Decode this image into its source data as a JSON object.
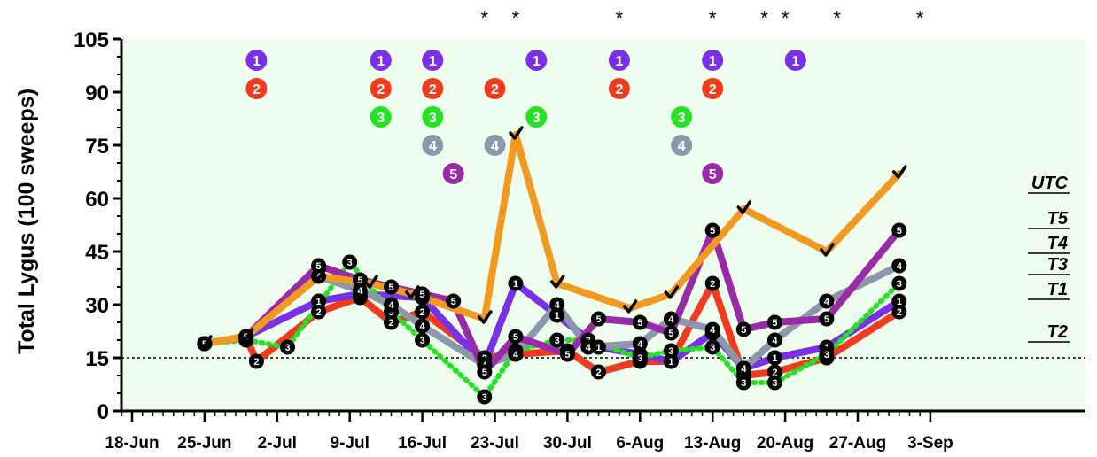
{
  "chart_data": {
    "type": "line",
    "ylabel": "Total Lygus (100 sweeps)",
    "ylim": [
      0,
      105
    ],
    "yticks": [
      0,
      15,
      30,
      45,
      60,
      75,
      90,
      105
    ],
    "xlim_day": [
      -4,
      76
    ],
    "xticks": [
      {
        "day": 0,
        "label": "18-Jun"
      },
      {
        "day": 7,
        "label": "25-Jun"
      },
      {
        "day": 14,
        "label": "2-Jul"
      },
      {
        "day": 21,
        "label": "9-Jul"
      },
      {
        "day": 28,
        "label": "16-Jul"
      },
      {
        "day": 35,
        "label": "23-Jul"
      },
      {
        "day": 42,
        "label": "30-Jul"
      },
      {
        "day": 49,
        "label": "6-Aug"
      },
      {
        "day": 56,
        "label": "13-Aug"
      },
      {
        "day": 63,
        "label": "20-Aug"
      },
      {
        "day": 70,
        "label": "27-Aug"
      },
      {
        "day": 77,
        "label": "3-Sep"
      }
    ],
    "threshold": 15,
    "series": [
      {
        "name": "UTC",
        "color": "#f29a1f",
        "marker": "check",
        "x": [
          7,
          11,
          18,
          23,
          27,
          34,
          37,
          41,
          48,
          52,
          59,
          67,
          74
        ],
        "y": [
          19,
          21,
          38,
          36,
          33,
          26,
          78,
          36,
          29,
          33,
          57,
          45,
          67
        ]
      },
      {
        "name": "T5",
        "color": "#9b2aa8",
        "marker": "5",
        "x": [
          7,
          11,
          18,
          22,
          25,
          28,
          31,
          34,
          37,
          42,
          45,
          49,
          52,
          56,
          59,
          62,
          67,
          74
        ],
        "y": [
          19,
          21,
          41,
          37,
          35,
          33,
          31,
          11,
          21,
          16,
          26,
          25,
          22,
          51,
          23,
          25,
          26,
          51
        ]
      },
      {
        "name": "T4",
        "color": "#8d97ab",
        "marker": "4",
        "x": [
          7,
          11,
          18,
          22,
          25,
          28,
          34,
          37,
          41,
          44,
          49,
          52,
          56,
          59,
          62,
          67,
          74
        ],
        "y": [
          19,
          21,
          38,
          34,
          30,
          24,
          13,
          16,
          30,
          18,
          19,
          26,
          23,
          12,
          20,
          31,
          41
        ]
      },
      {
        "name": "T3",
        "color": "#25e225",
        "marker": "3",
        "x": [
          7,
          11,
          15,
          21,
          25,
          28,
          34,
          37,
          41,
          44,
          49,
          52,
          56,
          59,
          62,
          67,
          74
        ],
        "y": [
          19,
          20,
          18,
          42,
          28,
          20,
          4,
          17,
          20,
          20,
          15,
          17,
          18,
          8,
          8,
          16,
          36
        ]
      },
      {
        "name": "T1",
        "color": "#7a30e8",
        "marker": "1",
        "x": [
          7,
          11,
          18,
          22,
          28,
          34,
          37,
          41,
          45,
          49,
          52,
          56,
          59,
          62,
          67,
          74
        ],
        "y": [
          19,
          21,
          31,
          33,
          32,
          13,
          36,
          27,
          18,
          16,
          14,
          22,
          12,
          15,
          18,
          31
        ]
      },
      {
        "name": "T2",
        "color": "#f23a1f",
        "marker": "2",
        "x": [
          7,
          11,
          12,
          18,
          22,
          25,
          28,
          34,
          37,
          42,
          45,
          49,
          52,
          56,
          59,
          62,
          67,
          74
        ],
        "y": [
          19,
          21,
          14,
          28,
          32,
          25,
          28,
          15,
          16,
          17,
          11,
          14,
          14,
          36,
          10,
          11,
          15,
          28
        ]
      }
    ],
    "significance_days": [
      34,
      37,
      47,
      56,
      61,
      63,
      68,
      76
    ],
    "significance_mark": "*",
    "calendar_markers": [
      {
        "label": "1",
        "color": "#7a30e8",
        "value": 99,
        "days": [
          12,
          24,
          29,
          39,
          47,
          56,
          64
        ]
      },
      {
        "label": "2",
        "color": "#f23a1f",
        "value": 91,
        "days": [
          12,
          24,
          29,
          35,
          47,
          56
        ]
      },
      {
        "label": "3",
        "color": "#25e225",
        "value": 83,
        "days": [
          24,
          29,
          39,
          53
        ]
      },
      {
        "label": "4",
        "color": "#8d97ab",
        "value": 75,
        "days": [
          29,
          35,
          53
        ]
      },
      {
        "label": "5",
        "color": "#9b2aa8",
        "value": 67,
        "days": [
          31,
          56
        ]
      }
    ],
    "label_positions": [
      {
        "name": "UTC",
        "value": 62
      },
      {
        "name": "T5",
        "value": 52
      },
      {
        "name": "T4",
        "value": 45
      },
      {
        "name": "T3",
        "value": 39
      },
      {
        "name": "T1",
        "value": 32
      },
      {
        "name": "T2",
        "value": 20
      }
    ],
    "plot_background": "#eefdee"
  }
}
